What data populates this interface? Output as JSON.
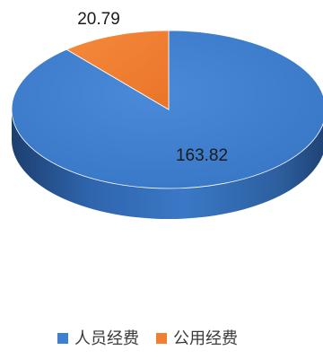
{
  "chart_data": {
    "type": "pie",
    "title": "",
    "categories": [
      "人员经费",
      "公用经费"
    ],
    "values": [
      163.82,
      20.79
    ],
    "colors": [
      "#3f7fd0",
      "#f07f34"
    ],
    "data_labels": [
      "163.82",
      "20.79"
    ],
    "legend_position": "bottom",
    "three_d": true
  }
}
